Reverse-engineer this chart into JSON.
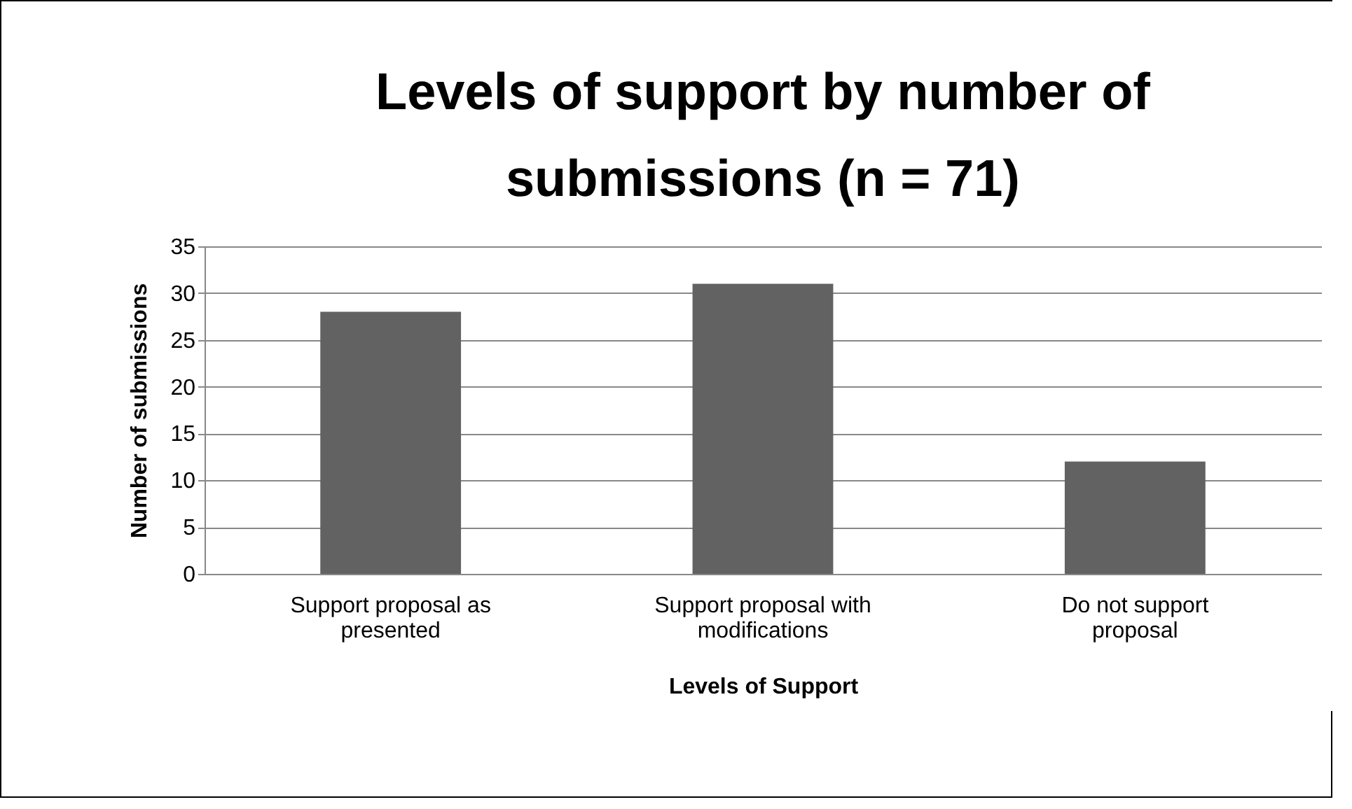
{
  "chart_data": {
    "type": "bar",
    "title": "Levels of support by number of submissions (n = 71)",
    "xlabel": "Levels of Support",
    "ylabel": "Number of submissions",
    "categories": [
      "Support proposal as presented",
      "Support proposal with modifications",
      "Do not support proposal"
    ],
    "values": [
      28,
      31,
      12
    ],
    "color": "#626262",
    "ylim": [
      0,
      35
    ],
    "yticks": [
      0,
      5,
      10,
      15,
      20,
      25,
      30,
      35
    ],
    "grid": "y"
  }
}
